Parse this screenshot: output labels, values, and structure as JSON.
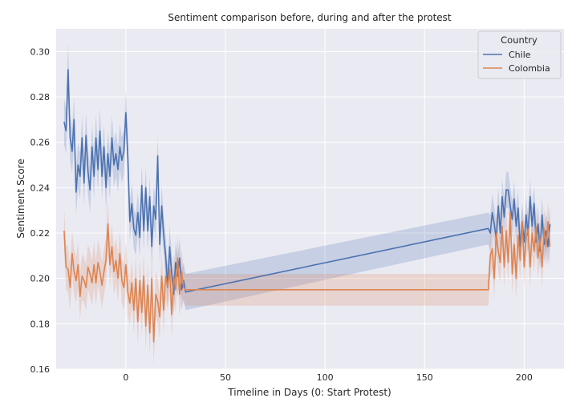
{
  "chart_data": {
    "type": "line",
    "title": "Sentiment comparison before, during and after the protest",
    "xlabel": "Timeline in Days (0: Start Protest)",
    "ylabel": "Sentiment Score",
    "xlim": [
      -35,
      220
    ],
    "ylim": [
      0.16,
      0.31
    ],
    "xticks": [
      0,
      50,
      100,
      150,
      200
    ],
    "yticks": [
      0.16,
      0.18,
      0.2,
      0.22,
      0.24,
      0.26,
      0.28,
      0.3
    ],
    "ytick_labels": [
      "0.16",
      "0.18",
      "0.20",
      "0.22",
      "0.24",
      "0.26",
      "0.28",
      "0.30"
    ],
    "grid": true,
    "legend": {
      "title": "Country",
      "position": "top-right"
    },
    "colors": {
      "background": "#eaeaf2",
      "grid": "#ffffff",
      "Chile": "#4c72b0",
      "Colombia": "#dd8452"
    },
    "series": [
      {
        "name": "Chile",
        "x": [
          -31,
          -30,
          -29,
          -28,
          -27,
          -26,
          -25,
          -24,
          -23,
          -22,
          -21,
          -20,
          -19,
          -18,
          -17,
          -16,
          -15,
          -14,
          -13,
          -12,
          -11,
          -10,
          -9,
          -8,
          -7,
          -6,
          -5,
          -4,
          -3,
          -2,
          -1,
          0,
          1,
          2,
          3,
          4,
          5,
          6,
          7,
          8,
          9,
          10,
          11,
          12,
          13,
          14,
          15,
          16,
          17,
          18,
          19,
          20,
          21,
          22,
          23,
          24,
          25,
          26,
          27,
          28,
          29,
          30,
          182,
          183,
          184,
          185,
          186,
          187,
          188,
          189,
          190,
          191,
          192,
          193,
          194,
          195,
          196,
          197,
          198,
          199,
          200,
          201,
          202,
          203,
          204,
          205,
          206,
          207,
          208,
          209,
          210,
          211,
          212,
          213
        ],
        "y": [
          0.269,
          0.265,
          0.292,
          0.262,
          0.256,
          0.27,
          0.238,
          0.25,
          0.245,
          0.262,
          0.242,
          0.263,
          0.247,
          0.239,
          0.258,
          0.245,
          0.262,
          0.248,
          0.265,
          0.245,
          0.258,
          0.24,
          0.255,
          0.245,
          0.262,
          0.25,
          0.255,
          0.248,
          0.258,
          0.252,
          0.256,
          0.273,
          0.253,
          0.225,
          0.233,
          0.222,
          0.219,
          0.229,
          0.218,
          0.241,
          0.221,
          0.24,
          0.221,
          0.236,
          0.214,
          0.232,
          0.226,
          0.254,
          0.215,
          0.232,
          0.219,
          0.21,
          0.196,
          0.214,
          0.202,
          0.193,
          0.207,
          0.201,
          0.209,
          0.195,
          0.199,
          0.194,
          0.222,
          0.22,
          0.229,
          0.224,
          0.217,
          0.232,
          0.22,
          0.236,
          0.227,
          0.239,
          0.239,
          0.232,
          0.226,
          0.235,
          0.223,
          0.231,
          0.214,
          0.225,
          0.216,
          0.228,
          0.219,
          0.236,
          0.223,
          0.233,
          0.216,
          0.224,
          0.212,
          0.228,
          0.215,
          0.221,
          0.214,
          0.224
        ],
        "ci": [
          0.01,
          0.01,
          0.012,
          0.01,
          0.01,
          0.01,
          0.01,
          0.01,
          0.01,
          0.01,
          0.01,
          0.01,
          0.01,
          0.01,
          0.01,
          0.01,
          0.01,
          0.01,
          0.01,
          0.01,
          0.01,
          0.01,
          0.01,
          0.01,
          0.01,
          0.01,
          0.01,
          0.01,
          0.01,
          0.01,
          0.01,
          0.01,
          0.01,
          0.009,
          0.009,
          0.009,
          0.009,
          0.009,
          0.009,
          0.009,
          0.009,
          0.009,
          0.009,
          0.009,
          0.009,
          0.009,
          0.009,
          0.009,
          0.009,
          0.009,
          0.009,
          0.009,
          0.009,
          0.009,
          0.009,
          0.009,
          0.009,
          0.009,
          0.009,
          0.009,
          0.008,
          0.008,
          0.007,
          0.008,
          0.008,
          0.008,
          0.008,
          0.008,
          0.008,
          0.008,
          0.008,
          0.008,
          0.008,
          0.008,
          0.008,
          0.008,
          0.008,
          0.008,
          0.008,
          0.008,
          0.008,
          0.008,
          0.008,
          0.008,
          0.008,
          0.008,
          0.008,
          0.008,
          0.008,
          0.008,
          0.008,
          0.008,
          0.008,
          0.008
        ]
      },
      {
        "name": "Colombia",
        "x": [
          -31,
          -30,
          -29,
          -28,
          -27,
          -26,
          -25,
          -24,
          -23,
          -22,
          -21,
          -20,
          -19,
          -18,
          -17,
          -16,
          -15,
          -14,
          -13,
          -12,
          -11,
          -10,
          -9,
          -8,
          -7,
          -6,
          -5,
          -4,
          -3,
          -2,
          -1,
          0,
          1,
          2,
          3,
          4,
          5,
          6,
          7,
          8,
          9,
          10,
          11,
          12,
          13,
          14,
          15,
          16,
          17,
          18,
          19,
          20,
          21,
          22,
          23,
          24,
          25,
          26,
          27,
          28,
          29,
          30,
          182,
          183,
          184,
          185,
          186,
          187,
          188,
          189,
          190,
          191,
          192,
          193,
          194,
          195,
          196,
          197,
          198,
          199,
          200,
          201,
          202,
          203,
          204,
          205,
          206,
          207,
          208,
          209,
          210,
          211,
          212,
          213
        ],
        "y": [
          0.221,
          0.205,
          0.204,
          0.196,
          0.211,
          0.203,
          0.199,
          0.206,
          0.192,
          0.201,
          0.199,
          0.196,
          0.205,
          0.202,
          0.198,
          0.206,
          0.198,
          0.207,
          0.203,
          0.197,
          0.203,
          0.208,
          0.224,
          0.206,
          0.214,
          0.203,
          0.208,
          0.2,
          0.211,
          0.199,
          0.196,
          0.206,
          0.194,
          0.189,
          0.198,
          0.186,
          0.2,
          0.181,
          0.199,
          0.185,
          0.201,
          0.179,
          0.197,
          0.176,
          0.2,
          0.172,
          0.193,
          0.19,
          0.183,
          0.201,
          0.186,
          0.201,
          0.196,
          0.204,
          0.184,
          0.201,
          0.195,
          0.209,
          0.193,
          0.203,
          0.196,
          0.195,
          0.195,
          0.21,
          0.213,
          0.2,
          0.22,
          0.212,
          0.207,
          0.223,
          0.205,
          0.221,
          0.207,
          0.229,
          0.202,
          0.215,
          0.2,
          0.219,
          0.208,
          0.225,
          0.205,
          0.218,
          0.222,
          0.205,
          0.22,
          0.212,
          0.223,
          0.209,
          0.218,
          0.205,
          0.222,
          0.214,
          0.225,
          0.214
        ],
        "ci": [
          0.01,
          0.01,
          0.01,
          0.01,
          0.01,
          0.01,
          0.01,
          0.01,
          0.01,
          0.01,
          0.01,
          0.01,
          0.01,
          0.01,
          0.01,
          0.01,
          0.01,
          0.01,
          0.01,
          0.01,
          0.01,
          0.01,
          0.01,
          0.01,
          0.01,
          0.01,
          0.01,
          0.01,
          0.01,
          0.01,
          0.01,
          0.01,
          0.01,
          0.01,
          0.01,
          0.01,
          0.01,
          0.01,
          0.01,
          0.01,
          0.01,
          0.01,
          0.01,
          0.01,
          0.01,
          0.01,
          0.01,
          0.01,
          0.01,
          0.01,
          0.01,
          0.01,
          0.01,
          0.01,
          0.01,
          0.01,
          0.01,
          0.01,
          0.01,
          0.01,
          0.007,
          0.007,
          0.007,
          0.009,
          0.009,
          0.009,
          0.009,
          0.009,
          0.009,
          0.009,
          0.009,
          0.009,
          0.009,
          0.009,
          0.009,
          0.009,
          0.009,
          0.009,
          0.009,
          0.009,
          0.009,
          0.009,
          0.009,
          0.009,
          0.009,
          0.009,
          0.009,
          0.009,
          0.009,
          0.009,
          0.009,
          0.009,
          0.009,
          0.009
        ]
      }
    ]
  }
}
